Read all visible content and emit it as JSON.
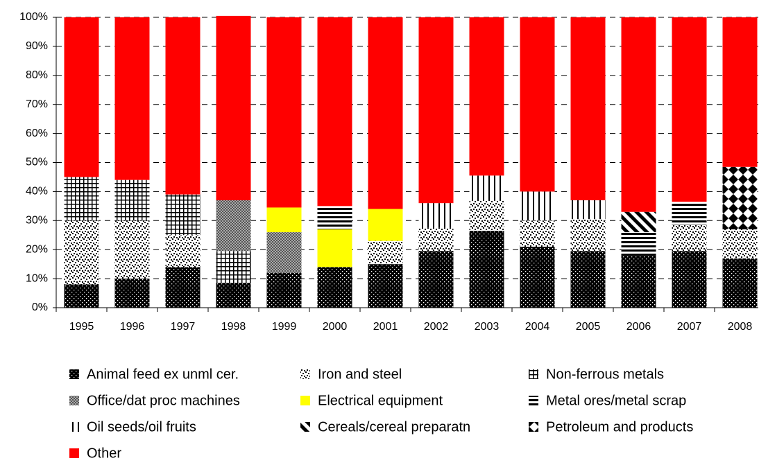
{
  "chart_data": {
    "type": "stacked-bar-100",
    "categories": [
      "1995",
      "1996",
      "1997",
      "1998",
      "1999",
      "2000",
      "2001",
      "2002",
      "2003",
      "2004",
      "2005",
      "2006",
      "2007",
      "2008"
    ],
    "ylim": [
      0,
      100
    ],
    "yticks": [
      {
        "value": 0,
        "label": "0%"
      },
      {
        "value": 10,
        "label": "10%"
      },
      {
        "value": 20,
        "label": "20%"
      },
      {
        "value": 30,
        "label": "30%"
      },
      {
        "value": 40,
        "label": "40%"
      },
      {
        "value": 50,
        "label": "50%"
      },
      {
        "value": 60,
        "label": "60%"
      },
      {
        "value": 70,
        "label": "70%"
      },
      {
        "value": 80,
        "label": "80%"
      },
      {
        "value": 90,
        "label": "90%"
      },
      {
        "value": 100,
        "label": "100%"
      }
    ],
    "grid": true,
    "series": [
      {
        "name": "Animal feed ex unml cer.",
        "color": "#000000",
        "pattern": "dots-black",
        "values": [
          8,
          10,
          14,
          8.5,
          12,
          14,
          15,
          19.5,
          26.5,
          21,
          19.5,
          18,
          19.5,
          17
        ]
      },
      {
        "name": "Iron and steel",
        "color": "#000000",
        "pattern": "speckle",
        "values": [
          22,
          20,
          11,
          null,
          null,
          null,
          8,
          8,
          10.5,
          9,
          11,
          null,
          9,
          10
        ]
      },
      {
        "name": "Non-ferrous metals",
        "color": "#000000",
        "pattern": "grid",
        "values": [
          15,
          14,
          14,
          11,
          null,
          null,
          null,
          null,
          null,
          null,
          null,
          null,
          null,
          null
        ]
      },
      {
        "name": "Office/dat proc machines",
        "color": "#808080",
        "pattern": "crosshatch",
        "values": [
          null,
          null,
          null,
          17.5,
          14,
          null,
          null,
          null,
          null,
          null,
          null,
          null,
          null,
          null
        ]
      },
      {
        "name": "Electrical equipment",
        "color": "#ffff00",
        "values": [
          null,
          null,
          null,
          null,
          8.5,
          13,
          11,
          null,
          null,
          null,
          null,
          null,
          null,
          null
        ]
      },
      {
        "name": "Metal ores/metal scrap",
        "color": "#000000",
        "pattern": "hstripes",
        "values": [
          null,
          null,
          null,
          null,
          null,
          8,
          null,
          null,
          null,
          null,
          null,
          8,
          8,
          null
        ]
      },
      {
        "name": "Oil seeds/oil fruits",
        "color": "#000000",
        "pattern": "vstripes",
        "values": [
          null,
          null,
          null,
          null,
          null,
          null,
          null,
          8.5,
          8.5,
          10,
          6.5,
          null,
          null,
          null
        ]
      },
      {
        "name": "Cereals/cereal preparatn",
        "color": "#000000",
        "pattern": "diag",
        "values": [
          null,
          null,
          null,
          null,
          null,
          null,
          null,
          null,
          null,
          null,
          null,
          7,
          null,
          null
        ]
      },
      {
        "name": "Petroleum and products",
        "color": "#000000",
        "pattern": "diamonds",
        "values": [
          null,
          null,
          null,
          null,
          null,
          null,
          null,
          null,
          null,
          null,
          null,
          null,
          null,
          21.5
        ]
      },
      {
        "name": "Other",
        "color": "#ff0000",
        "values": [
          55,
          56,
          61,
          63.5,
          65.5,
          65,
          66,
          64,
          54.5,
          60,
          63,
          67,
          63.5,
          51.5
        ]
      }
    ]
  }
}
